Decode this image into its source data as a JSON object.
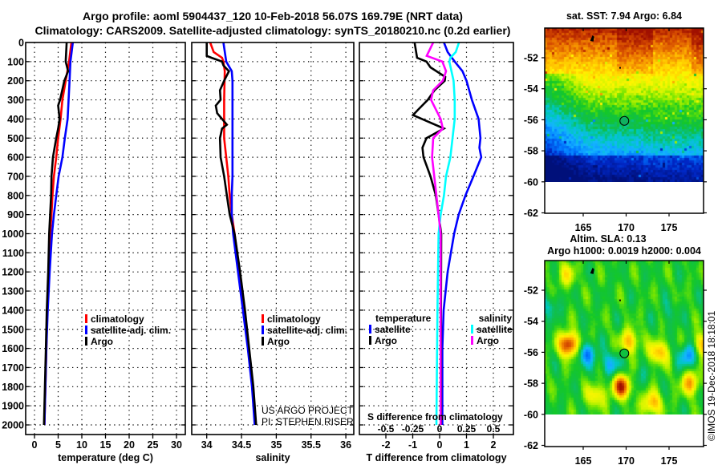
{
  "title": {
    "line1": "Argo profile: aoml 5904437_120 10-Feb-2018 56.07S 169.79E (NRT data)",
    "line2": "Climatology: CARS2009. Satellite-adjusted climatology: synTS_20180210.nc (0.2d earlier)"
  },
  "depth_ticks": [
    "0",
    "100",
    "200",
    "300",
    "400",
    "500",
    "600",
    "700",
    "800",
    "900",
    "1000",
    "1100",
    "1200",
    "1300",
    "1400",
    "1500",
    "1600",
    "1700",
    "1800",
    "1900",
    "2000"
  ],
  "credits": {
    "line1": "US ARGO PROJECT",
    "line2": "PI: STEPHEN RISER"
  },
  "timestamp": "©IMOS 19-Dec-2018 18:18:01",
  "colors": {
    "climatology": "#ff0000",
    "satellite": "#0000ff",
    "argo": "#000000",
    "sal_satellite": "#00ffff",
    "sal_argo": "#ff00ff"
  },
  "chart_data": [
    {
      "type": "line",
      "name": "temperature-profile",
      "xlabel": "temperature (deg C)",
      "ylabel": "depth",
      "xlim": [
        -1.85,
        31.9
      ],
      "ylim": [
        2050,
        0
      ],
      "xticks": [
        0,
        5,
        10,
        15,
        20,
        25,
        30
      ],
      "xtick_labels": [
        "0",
        "5",
        "10",
        "15",
        "20",
        "25",
        "30"
      ],
      "grid": true,
      "legend": {
        "position": "lower-center",
        "entries": [
          "climatology",
          "satellite-adj. clim.",
          "Argo"
        ]
      },
      "series": [
        {
          "name": "climatology",
          "color": "#ff0000",
          "depth": [
            0,
            100,
            200,
            300,
            400,
            500,
            600,
            700,
            800,
            900,
            1000,
            1200,
            1400,
            1600,
            1800,
            2000
          ],
          "values": [
            7.8,
            7.3,
            6.6,
            5.9,
            5.5,
            5.0,
            4.6,
            4.1,
            3.8,
            3.6,
            3.3,
            3.0,
            2.7,
            2.5,
            2.3,
            2.1
          ]
        },
        {
          "name": "satellite-adj. clim.",
          "color": "#0000ff",
          "depth": [
            0,
            100,
            200,
            300,
            400,
            500,
            600,
            700,
            800,
            900,
            1000,
            1200,
            1400,
            1600,
            1800,
            2000
          ],
          "values": [
            8.1,
            7.6,
            7.4,
            7.2,
            7.0,
            6.4,
            5.9,
            5.1,
            4.6,
            4.1,
            3.7,
            3.2,
            2.8,
            2.5,
            2.3,
            2.1
          ]
        },
        {
          "name": "Argo",
          "color": "#000000",
          "depth": [
            0,
            100,
            150,
            200,
            300,
            330,
            400,
            450,
            500,
            600,
            700,
            800,
            900,
            1000,
            1200,
            1400,
            1600,
            1800,
            2000
          ],
          "values": [
            6.8,
            6.6,
            7.1,
            6.3,
            5.4,
            5.0,
            5.3,
            5.0,
            4.6,
            3.9,
            3.6,
            3.5,
            3.3,
            3.1,
            2.9,
            2.6,
            2.4,
            2.2,
            2.0
          ]
        }
      ]
    },
    {
      "type": "line",
      "name": "salinity-profile",
      "xlabel": "salinity",
      "ylabel": "depth",
      "xlim": [
        33.79,
        36.12
      ],
      "ylim": [
        2050,
        0
      ],
      "xticks": [
        34,
        34.5,
        35,
        35.5,
        36
      ],
      "xtick_labels": [
        "34",
        "34.5",
        "35",
        "35.5",
        "36"
      ],
      "grid": true,
      "legend": {
        "position": "lower-center",
        "entries": [
          "climatology",
          "satellite-adj. clim.",
          "Argo"
        ]
      },
      "series": [
        {
          "name": "climatology",
          "color": "#ff0000",
          "depth": [
            0,
            50,
            80,
            100,
            150,
            300,
            500,
            600,
            700,
            800,
            900,
            1000,
            1200,
            1400,
            1600,
            1800,
            2000
          ],
          "values": [
            34.05,
            34.1,
            34.22,
            34.24,
            34.26,
            34.25,
            34.25,
            34.28,
            34.31,
            34.33,
            34.36,
            34.4,
            34.47,
            34.53,
            34.6,
            34.66,
            34.7
          ]
        },
        {
          "name": "satellite-adj. clim.",
          "color": "#0000ff",
          "depth": [
            0,
            100,
            150,
            200,
            700,
            800,
            900,
            1000,
            1200,
            1400,
            1600,
            1800,
            2000
          ],
          "values": [
            34.24,
            34.28,
            34.36,
            34.37,
            34.37,
            34.36,
            34.36,
            34.38,
            34.45,
            34.52,
            34.59,
            34.65,
            34.69
          ]
        },
        {
          "name": "Argo",
          "color": "#000000",
          "depth": [
            0,
            70,
            80,
            100,
            120,
            150,
            200,
            250,
            300,
            330,
            370,
            400,
            430,
            450,
            500,
            600,
            700,
            800,
            900,
            1000,
            1200,
            1400,
            1600,
            1800,
            2000
          ],
          "values": [
            34.0,
            34.0,
            34.07,
            34.22,
            34.24,
            34.32,
            34.25,
            34.19,
            34.2,
            34.13,
            34.15,
            34.22,
            34.29,
            34.22,
            34.19,
            34.2,
            34.25,
            34.29,
            34.33,
            34.4,
            34.48,
            34.55,
            34.61,
            34.67,
            34.71
          ]
        }
      ]
    },
    {
      "type": "line",
      "name": "difference-profile",
      "xlabel": "T difference from climatology",
      "x2label": "S difference from climatology",
      "ylabel": "depth",
      "xlim": [
        -2.98,
        2.75
      ],
      "x2lim": [
        -0.745,
        0.687
      ],
      "ylim": [
        2050,
        0
      ],
      "xticks": [
        -2,
        -1,
        0,
        1,
        2
      ],
      "xtick_labels": [
        "-2",
        "-1",
        "0",
        "1",
        "2"
      ],
      "x2ticks": [
        -0.5,
        -0.25,
        0,
        0.25,
        0.5
      ],
      "x2tick_labels": [
        "-0.5",
        "-0.25",
        "0",
        "0.25",
        "0.5"
      ],
      "grid": true,
      "legend": {
        "position": "lower-center",
        "temperature_header": "temperature",
        "salinity_header": "salinity",
        "entries": [
          "satellite",
          "Argo"
        ]
      },
      "series": [
        {
          "name": "T satellite",
          "variable": "temperature",
          "color": "#0000ff",
          "depth": [
            0,
            50,
            100,
            150,
            200,
            300,
            400,
            500,
            550,
            600,
            700,
            800,
            900,
            1000,
            1200,
            1400,
            1600,
            2000
          ],
          "values": [
            0.16,
            0.3,
            0.56,
            0.85,
            1.0,
            1.2,
            1.45,
            1.52,
            1.48,
            1.55,
            1.26,
            0.96,
            0.71,
            0.54,
            0.3,
            0.15,
            0.1,
            0.1
          ]
        },
        {
          "name": "T Argo",
          "variable": "temperature",
          "color": "#000000",
          "depth": [
            0,
            80,
            100,
            130,
            180,
            200,
            250,
            300,
            350,
            380,
            450,
            500,
            550,
            600,
            700,
            800,
            900,
            1000,
            1400,
            2000
          ],
          "values": [
            -0.93,
            -0.84,
            -0.49,
            -0.34,
            0.21,
            0.19,
            -0.19,
            -0.44,
            -0.79,
            -0.99,
            0.16,
            -0.49,
            -0.64,
            -0.6,
            -0.34,
            -0.14,
            -0.04,
            0.06,
            0.05,
            0.05
          ]
        },
        {
          "name": "S satellite",
          "variable": "salinity",
          "color": "#00ffff",
          "depth": [
            0,
            50,
            80,
            100,
            200,
            300,
            400,
            500,
            600,
            700,
            800,
            900,
            1000,
            1400,
            2000
          ],
          "values": [
            0.18,
            0.15,
            0.1,
            0.09,
            0.13,
            0.14,
            0.14,
            0.12,
            0.1,
            0.06,
            0.04,
            0.01,
            -0.01,
            -0.02,
            -0.03
          ]
        },
        {
          "name": "S Argo",
          "variable": "salinity",
          "color": "#ff00ff",
          "depth": [
            0,
            70,
            100,
            150,
            200,
            250,
            300,
            400,
            450,
            500,
            600,
            700,
            800,
            900,
            1000,
            2000
          ],
          "values": [
            -0.06,
            -0.12,
            0.025,
            0.06,
            0.03,
            -0.06,
            -0.08,
            0.01,
            0.03,
            -0.06,
            -0.07,
            -0.05,
            -0.03,
            -0.01,
            0.01,
            0.01
          ]
        }
      ]
    },
    {
      "type": "heatmap",
      "name": "sst-map",
      "title": "sat. SST: 7.94 Argo: 6.84",
      "lon_range": [
        160.5,
        179
      ],
      "lat_range": [
        -62,
        -50.2
      ],
      "xtick_labels": [
        "165",
        "170",
        "175"
      ],
      "ytick_labels": [
        "-52",
        "-54",
        "-56",
        "-58",
        "-60",
        "-62"
      ],
      "argo_position": {
        "lon": 169.79,
        "lat": -56.07
      }
    },
    {
      "type": "heatmap",
      "name": "sla-map",
      "title": "Altim. SLA: 0.13",
      "subtitle": "Argo h1000: 0.0019 h2000: 0.004",
      "lon_range": [
        160.5,
        179
      ],
      "lat_range": [
        -62,
        -50.2
      ],
      "xtick_labels": [
        "165",
        "170",
        "175"
      ],
      "ytick_labels": [
        "-52",
        "-54",
        "-56",
        "-58",
        "-60",
        "-62"
      ],
      "argo_position": {
        "lon": 169.79,
        "lat": -56.07
      }
    }
  ]
}
